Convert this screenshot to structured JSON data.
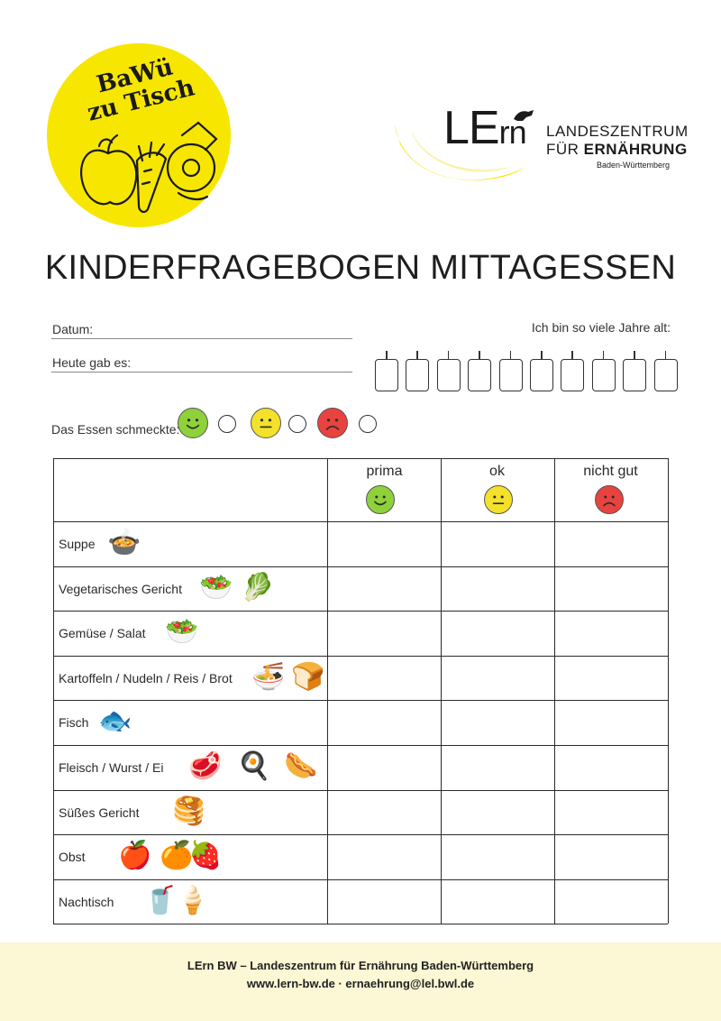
{
  "badge": {
    "line1": "BaWü",
    "line2": "zu Tisch"
  },
  "logo": {
    "word_le": "LE",
    "word_rn": "rn",
    "line1": "LANDESZENTRUM",
    "line2_a": "FÜR ",
    "line2_b": "ERNÄHRUNG",
    "line3": "Baden-Württemberg"
  },
  "title": "KINDERFRAGEBOGEN MITTAGESSEN",
  "form": {
    "date_label": "Datum:",
    "menu_label": "Heute gab es:",
    "age_label": "Ich bin so viele Jahre alt:",
    "candles_count": 10,
    "rating_label": "Das Essen schmeckte:"
  },
  "colors": {
    "good": "#8ed13b",
    "ok": "#f4e12a",
    "bad": "#e8433f",
    "badge": "#f7e600",
    "footer_bg": "#fcf7d4"
  },
  "table": {
    "columns": [
      "prima",
      "ok",
      "nicht gut"
    ],
    "rows": [
      {
        "label": "Suppe",
        "icons": [
          "🍲"
        ]
      },
      {
        "label": "Vegetarisches Gericht",
        "icons": [
          "🥗",
          "🥬"
        ]
      },
      {
        "label": "Gemüse / Salat",
        "icons": [
          "🥗"
        ]
      },
      {
        "label": "Kartoffeln / Nudeln / Reis / Brot",
        "icons": [
          "🍜",
          "🍞"
        ]
      },
      {
        "label": "Fisch",
        "icons": [
          "🐟"
        ]
      },
      {
        "label": "Fleisch / Wurst / Ei",
        "icons": [
          "🥩",
          "🍳",
          "🌭"
        ]
      },
      {
        "label": "Süßes Gericht",
        "icons": [
          "🥞"
        ]
      },
      {
        "label": "Obst",
        "icons": [
          "🍎",
          "🍊",
          "🍓"
        ]
      },
      {
        "label": "Nachtisch",
        "icons": [
          "🥤",
          "🍦"
        ]
      }
    ]
  },
  "footer": {
    "line1": "LErn BW – Landeszentrum für Ernährung Baden-Württemberg",
    "line2": "www.lern-bw.de · ernaehrung@lel.bwl.de"
  }
}
